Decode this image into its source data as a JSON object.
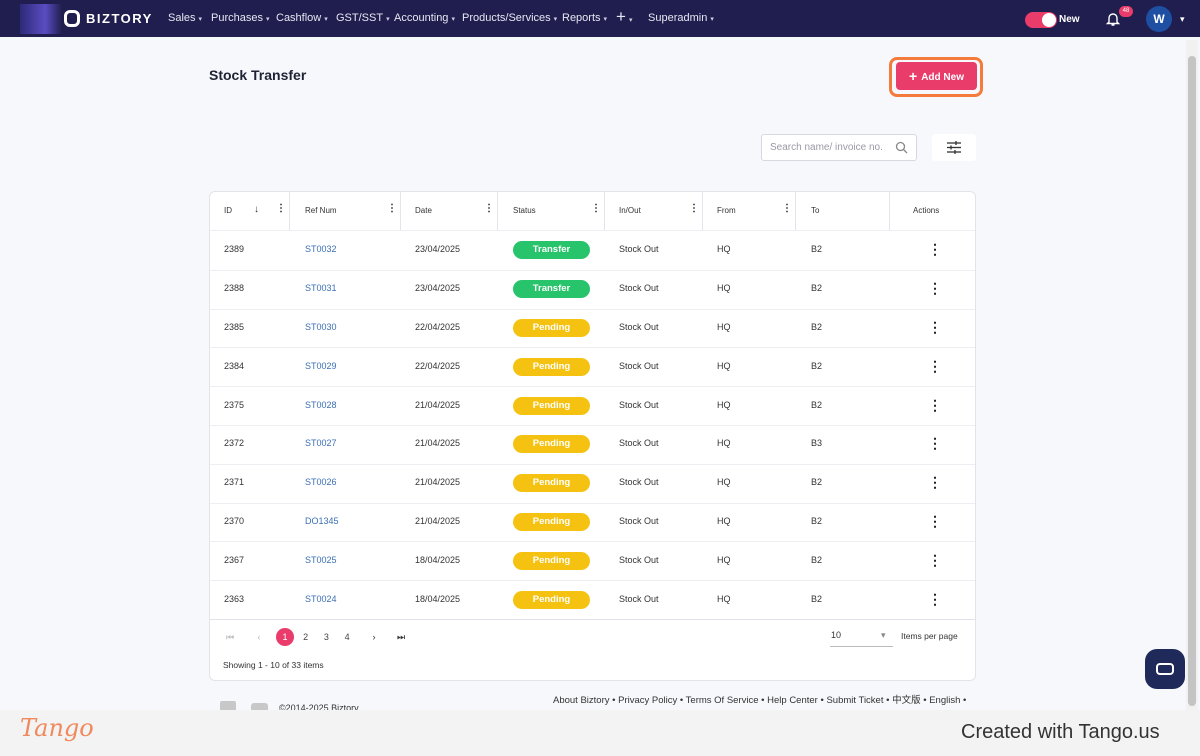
{
  "nav": {
    "brand": "BIZTORY",
    "menu": [
      "Sales",
      "Purchases",
      "Cashflow",
      "GST/SST",
      "Accounting",
      "Products/Services",
      "Reports",
      "+",
      "Superadmin"
    ],
    "toggle_label": "New",
    "notification_count": "48",
    "avatar": "W"
  },
  "page": {
    "title": "Stock Transfer",
    "add_button": "Add New",
    "search_placeholder": "Search name/ invoice no."
  },
  "table": {
    "columns": [
      "ID",
      "Ref Num",
      "Date",
      "Status",
      "In/Out",
      "From",
      "To",
      "Actions"
    ],
    "rows": [
      {
        "id": 2389,
        "ref": "ST0032",
        "date": "23/04/2025",
        "status": "Transfer",
        "status_color": "#27c46b",
        "in_out": "Stock Out",
        "from": "HQ",
        "to": "B2"
      },
      {
        "id": 2388,
        "ref": "ST0031",
        "date": "23/04/2025",
        "status": "Transfer",
        "status_color": "#27c46b",
        "in_out": "Stock Out",
        "from": "HQ",
        "to": "B2"
      },
      {
        "id": 2385,
        "ref": "ST0030",
        "date": "22/04/2025",
        "status": "Pending",
        "status_color": "#f5c211",
        "in_out": "Stock Out",
        "from": "HQ",
        "to": "B2"
      },
      {
        "id": 2384,
        "ref": "ST0029",
        "date": "22/04/2025",
        "status": "Pending",
        "status_color": "#f5c211",
        "in_out": "Stock Out",
        "from": "HQ",
        "to": "B2"
      },
      {
        "id": 2375,
        "ref": "ST0028",
        "date": "21/04/2025",
        "status": "Pending",
        "status_color": "#f5c211",
        "in_out": "Stock Out",
        "from": "HQ",
        "to": "B2"
      },
      {
        "id": 2372,
        "ref": "ST0027",
        "date": "21/04/2025",
        "status": "Pending",
        "status_color": "#f5c211",
        "in_out": "Stock Out",
        "from": "HQ",
        "to": "B3"
      },
      {
        "id": 2371,
        "ref": "ST0026",
        "date": "21/04/2025",
        "status": "Pending",
        "status_color": "#f5c211",
        "in_out": "Stock Out",
        "from": "HQ",
        "to": "B2"
      },
      {
        "id": 2370,
        "ref": "DO1345",
        "date": "21/04/2025",
        "status": "Pending",
        "status_color": "#f5c211",
        "in_out": "Stock Out",
        "from": "HQ",
        "to": "B2"
      },
      {
        "id": 2367,
        "ref": "ST0025",
        "date": "18/04/2025",
        "status": "Pending",
        "status_color": "#f5c211",
        "in_out": "Stock Out",
        "from": "HQ",
        "to": "B2"
      },
      {
        "id": 2363,
        "ref": "ST0024",
        "date": "18/04/2025",
        "status": "Pending",
        "status_color": "#f5c211",
        "in_out": "Stock Out",
        "from": "HQ",
        "to": "B2"
      }
    ]
  },
  "pagination": {
    "pages": [
      1,
      2,
      3,
      4
    ],
    "current": 1,
    "page_size": "10",
    "page_size_label": "Items per page",
    "summary": "Showing 1 - 10 of 33 items"
  },
  "footer": {
    "copyright": "©2014-2025 Biztory",
    "links": [
      "About Biztory",
      "Privacy Policy",
      "Terms Of Service",
      "Help Center",
      "Submit Ticket",
      "中文版",
      "English"
    ]
  },
  "tango": {
    "logo": "Tango",
    "credit": "Created with Tango.us"
  }
}
